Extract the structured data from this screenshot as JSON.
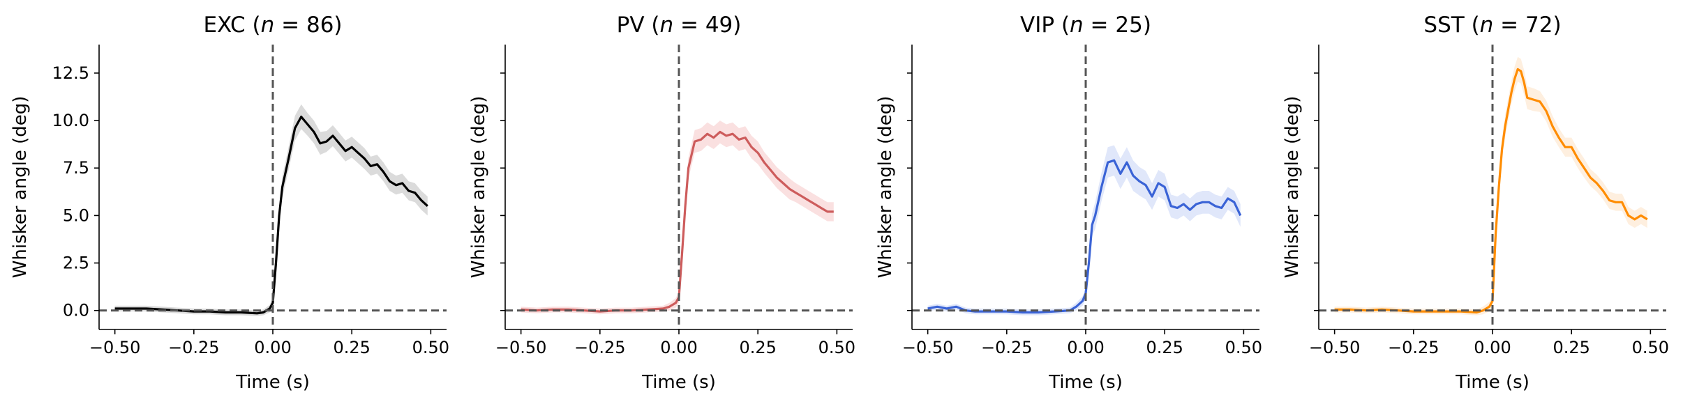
{
  "chart_data": [
    {
      "type": "line",
      "title_prefix": "EXC (",
      "title_var": "n",
      "title_suffix": " = 86)",
      "xlabel": "Time (s)",
      "ylabel": "Whisker angle (deg)",
      "xlim": [
        -0.55,
        0.55
      ],
      "ylim": [
        -1.0,
        14.0
      ],
      "xticks": [
        "-0.50",
        "-0.25",
        "0.00",
        "0.25",
        "0.50"
      ],
      "yticks": [
        "0.0",
        "2.5",
        "5.0",
        "7.5",
        "10.0",
        "12.5"
      ],
      "show_ytick_labels": true,
      "color": "#000000",
      "band_color": "#bdbdbd",
      "series": [
        {
          "x": [
            -0.5,
            -0.45,
            -0.4,
            -0.35,
            -0.3,
            -0.25,
            -0.2,
            -0.15,
            -0.1,
            -0.05,
            -0.03,
            -0.01,
            0.0,
            0.01,
            0.02,
            0.03,
            0.05,
            0.07,
            0.09,
            0.11,
            0.13,
            0.15,
            0.17,
            0.19,
            0.21,
            0.23,
            0.25,
            0.27,
            0.29,
            0.31,
            0.33,
            0.35,
            0.37,
            0.39,
            0.41,
            0.43,
            0.45,
            0.47,
            0.49
          ],
          "y": [
            0.1,
            0.1,
            0.1,
            0.05,
            0.0,
            -0.05,
            -0.05,
            -0.1,
            -0.1,
            -0.15,
            -0.1,
            0.1,
            0.4,
            2.5,
            5.0,
            6.5,
            8.0,
            9.6,
            10.2,
            9.8,
            9.4,
            8.8,
            8.9,
            9.2,
            8.8,
            8.4,
            8.6,
            8.3,
            8.0,
            7.6,
            7.7,
            7.3,
            6.8,
            6.6,
            6.7,
            6.3,
            6.2,
            5.8,
            5.5
          ],
          "err": [
            0.15,
            0.15,
            0.15,
            0.15,
            0.15,
            0.15,
            0.15,
            0.15,
            0.15,
            0.15,
            0.15,
            0.2,
            0.3,
            0.4,
            0.5,
            0.55,
            0.6,
            0.65,
            0.65,
            0.6,
            0.6,
            0.6,
            0.55,
            0.55,
            0.55,
            0.55,
            0.55,
            0.55,
            0.55,
            0.5,
            0.5,
            0.5,
            0.5,
            0.5,
            0.5,
            0.5,
            0.5,
            0.5,
            0.5
          ]
        }
      ]
    },
    {
      "type": "line",
      "title_prefix": "PV (",
      "title_var": "n",
      "title_suffix": " = 49)",
      "xlabel": "Time (s)",
      "ylabel": "Whisker angle (deg)",
      "xlim": [
        -0.55,
        0.55
      ],
      "ylim": [
        -1.0,
        14.0
      ],
      "xticks": [
        "-0.50",
        "-0.25",
        "0.00",
        "0.25",
        "0.50"
      ],
      "yticks": [
        "0.0",
        "2.5",
        "5.0",
        "7.5",
        "10.0",
        "12.5"
      ],
      "show_ytick_labels": false,
      "color": "#cd5c5c",
      "band_color": "#f5c6c6",
      "series": [
        {
          "x": [
            -0.5,
            -0.45,
            -0.4,
            -0.35,
            -0.3,
            -0.25,
            -0.2,
            -0.15,
            -0.1,
            -0.05,
            -0.03,
            -0.01,
            0.0,
            0.01,
            0.02,
            0.03,
            0.05,
            0.07,
            0.09,
            0.11,
            0.13,
            0.15,
            0.17,
            0.19,
            0.21,
            0.23,
            0.25,
            0.27,
            0.29,
            0.31,
            0.33,
            0.35,
            0.37,
            0.39,
            0.41,
            0.43,
            0.45,
            0.47,
            0.49
          ],
          "y": [
            0.05,
            0.0,
            0.05,
            0.05,
            0.0,
            -0.05,
            0.0,
            0.0,
            0.05,
            0.1,
            0.2,
            0.4,
            0.7,
            3.0,
            5.5,
            7.5,
            8.9,
            9.0,
            9.3,
            9.1,
            9.4,
            9.2,
            9.3,
            9.0,
            9.1,
            8.6,
            8.3,
            7.8,
            7.4,
            7.0,
            6.7,
            6.4,
            6.2,
            6.0,
            5.8,
            5.6,
            5.4,
            5.2,
            5.2
          ],
          "err": [
            0.15,
            0.15,
            0.15,
            0.15,
            0.15,
            0.15,
            0.15,
            0.15,
            0.15,
            0.15,
            0.2,
            0.25,
            0.3,
            0.4,
            0.5,
            0.55,
            0.6,
            0.6,
            0.6,
            0.6,
            0.6,
            0.6,
            0.6,
            0.6,
            0.6,
            0.6,
            0.6,
            0.55,
            0.55,
            0.55,
            0.55,
            0.55,
            0.5,
            0.5,
            0.5,
            0.5,
            0.5,
            0.5,
            0.5
          ]
        }
      ]
    },
    {
      "type": "line",
      "title_prefix": "VIP (",
      "title_var": "n",
      "title_suffix": " = 25)",
      "xlabel": "Time (s)",
      "ylabel": "Whisker angle (deg)",
      "xlim": [
        -0.55,
        0.55
      ],
      "ylim": [
        -1.0,
        14.0
      ],
      "xticks": [
        "-0.50",
        "-0.25",
        "0.00",
        "0.25",
        "0.50"
      ],
      "yticks": [
        "0.0",
        "2.5",
        "5.0",
        "7.5",
        "10.0",
        "12.5"
      ],
      "show_ytick_labels": false,
      "color": "#3a63d6",
      "band_color": "#c6d3f5",
      "series": [
        {
          "x": [
            -0.5,
            -0.47,
            -0.44,
            -0.41,
            -0.38,
            -0.35,
            -0.3,
            -0.25,
            -0.2,
            -0.15,
            -0.1,
            -0.05,
            -0.03,
            -0.01,
            0.0,
            0.01,
            0.02,
            0.03,
            0.05,
            0.07,
            0.09,
            0.11,
            0.13,
            0.15,
            0.17,
            0.19,
            0.21,
            0.23,
            0.25,
            0.27,
            0.29,
            0.31,
            0.33,
            0.35,
            0.37,
            0.39,
            0.41,
            0.43,
            0.45,
            0.47,
            0.49
          ],
          "y": [
            0.1,
            0.2,
            0.1,
            0.2,
            0.0,
            -0.05,
            -0.05,
            -0.05,
            -0.1,
            -0.1,
            -0.05,
            0.0,
            0.2,
            0.5,
            0.9,
            2.5,
            4.5,
            5.0,
            6.5,
            7.8,
            7.9,
            7.2,
            7.8,
            7.1,
            6.8,
            6.6,
            6.0,
            6.7,
            6.5,
            5.5,
            5.4,
            5.6,
            5.3,
            5.6,
            5.7,
            5.7,
            5.5,
            5.4,
            5.9,
            5.7,
            5.0
          ],
          "err": [
            0.15,
            0.15,
            0.15,
            0.15,
            0.15,
            0.15,
            0.15,
            0.15,
            0.15,
            0.15,
            0.15,
            0.15,
            0.2,
            0.25,
            0.3,
            0.5,
            0.6,
            0.7,
            0.75,
            0.8,
            0.8,
            0.8,
            0.8,
            0.8,
            0.75,
            0.75,
            0.7,
            0.7,
            0.7,
            0.6,
            0.6,
            0.6,
            0.6,
            0.6,
            0.6,
            0.6,
            0.6,
            0.6,
            0.6,
            0.6,
            0.6
          ]
        }
      ]
    },
    {
      "type": "line",
      "title_prefix": "SST (",
      "title_var": "n",
      "title_suffix": " = 72)",
      "xlabel": "Time (s)",
      "ylabel": "Whisker angle (deg)",
      "xlim": [
        -0.55,
        0.55
      ],
      "ylim": [
        -1.0,
        14.0
      ],
      "xticks": [
        "-0.50",
        "-0.25",
        "0.00",
        "0.25",
        "0.50"
      ],
      "yticks": [
        "0.0",
        "2.5",
        "5.0",
        "7.5",
        "10.0",
        "12.5"
      ],
      "show_ytick_labels": false,
      "color": "#ff8c00",
      "band_color": "#fde1c4",
      "series": [
        {
          "x": [
            -0.5,
            -0.45,
            -0.4,
            -0.35,
            -0.3,
            -0.25,
            -0.2,
            -0.15,
            -0.1,
            -0.05,
            -0.03,
            -0.01,
            0.0,
            0.01,
            0.02,
            0.03,
            0.04,
            0.05,
            0.06,
            0.07,
            0.08,
            0.09,
            0.1,
            0.11,
            0.13,
            0.15,
            0.17,
            0.19,
            0.21,
            0.23,
            0.25,
            0.27,
            0.29,
            0.31,
            0.33,
            0.35,
            0.37,
            0.39,
            0.41,
            0.43,
            0.45,
            0.47,
            0.49
          ],
          "y": [
            0.05,
            0.05,
            0.0,
            0.05,
            0.0,
            -0.05,
            -0.05,
            -0.05,
            -0.05,
            -0.1,
            0.0,
            0.2,
            0.5,
            4.0,
            6.5,
            8.5,
            9.7,
            10.6,
            11.5,
            12.2,
            12.7,
            12.6,
            12.0,
            11.2,
            11.1,
            11.0,
            10.5,
            9.7,
            9.1,
            8.6,
            8.6,
            8.0,
            7.5,
            7.0,
            6.7,
            6.3,
            5.8,
            5.7,
            5.7,
            5.0,
            4.8,
            5.0,
            4.8
          ],
          "err": [
            0.15,
            0.15,
            0.15,
            0.15,
            0.15,
            0.15,
            0.15,
            0.15,
            0.15,
            0.15,
            0.2,
            0.25,
            0.3,
            0.4,
            0.5,
            0.55,
            0.6,
            0.6,
            0.6,
            0.65,
            0.65,
            0.65,
            0.65,
            0.6,
            0.6,
            0.55,
            0.55,
            0.55,
            0.5,
            0.5,
            0.5,
            0.5,
            0.5,
            0.45,
            0.45,
            0.45,
            0.45,
            0.45,
            0.45,
            0.45,
            0.45,
            0.45,
            0.45
          ]
        }
      ]
    }
  ]
}
